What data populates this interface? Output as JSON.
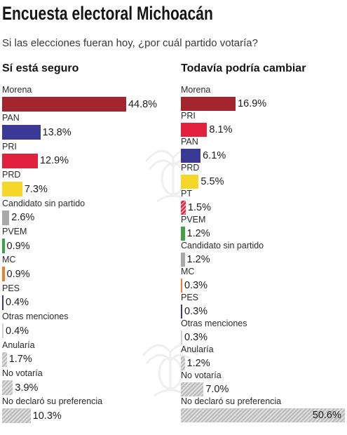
{
  "title": "Encuesta electoral Michoacán",
  "subtitle": "Si las elecciones fueran hoy, ¿por cuál partido votaría?",
  "chart_data": [
    {
      "type": "bar",
      "orientation": "horizontal",
      "title": "Sí está seguro",
      "categories": [
        "Morena",
        "PAN",
        "PRI",
        "PRD",
        "Candidato sin partido",
        "PVEM",
        "MC",
        "PES",
        "Otras menciones",
        "Anularía",
        "No votaría",
        "No declaró su preferencia"
      ],
      "values": [
        44.8,
        13.8,
        12.9,
        7.3,
        2.6,
        0.9,
        0.9,
        0.4,
        0.4,
        1.7,
        3.9,
        10.3
      ],
      "value_labels": [
        "44.8%",
        "13.8%",
        "12.9%",
        "7.3%",
        "2.6%",
        "0.9%",
        "0.9%",
        "0.4%",
        "0.4%",
        "1.7%",
        "3.9%",
        "10.3%"
      ],
      "colors": [
        "#a3262f",
        "#3a3a96",
        "#e2213f",
        "#f5d72a",
        "#a8a8a8",
        "#42a047",
        "#ef7d30",
        "#40398a",
        "#cfcfcf",
        "#bcbcbc",
        "#bcbcbc",
        "#bcbcbc"
      ],
      "hatched": [
        false,
        false,
        false,
        false,
        false,
        false,
        false,
        false,
        false,
        true,
        true,
        true
      ]
    },
    {
      "type": "bar",
      "orientation": "horizontal",
      "title": "Todavía podría cambiar",
      "categories": [
        "Morena",
        "PRI",
        "PAN",
        "PRD",
        "PT",
        "PVEM",
        "Candidato sin partido",
        "MC",
        "PES",
        "Otras menciones",
        "Anularía",
        "No votaría",
        "No declaró su preferencia"
      ],
      "values": [
        16.9,
        8.1,
        6.1,
        5.5,
        1.5,
        1.2,
        1.2,
        0.3,
        0.3,
        0.3,
        1.2,
        7.0,
        50.6
      ],
      "value_labels": [
        "16.9%",
        "8.1%",
        "6.1%",
        "5.5%",
        "1.5%",
        "1.2%",
        "1.2%",
        "0.3%",
        "0.3%",
        "0.3%",
        "1.2%",
        "7.0%",
        "50.6%"
      ],
      "colors": [
        "#a3262f",
        "#e2213f",
        "#3a3a96",
        "#f5d72a",
        "#e2213f",
        "#42a047",
        "#a8a8a8",
        "#ef7d30",
        "#40398a",
        "#cfcfcf",
        "#bcbcbc",
        "#bcbcbc",
        "#bcbcbc"
      ],
      "hatched": [
        false,
        false,
        false,
        false,
        true,
        false,
        false,
        false,
        false,
        false,
        true,
        true,
        true
      ]
    }
  ]
}
